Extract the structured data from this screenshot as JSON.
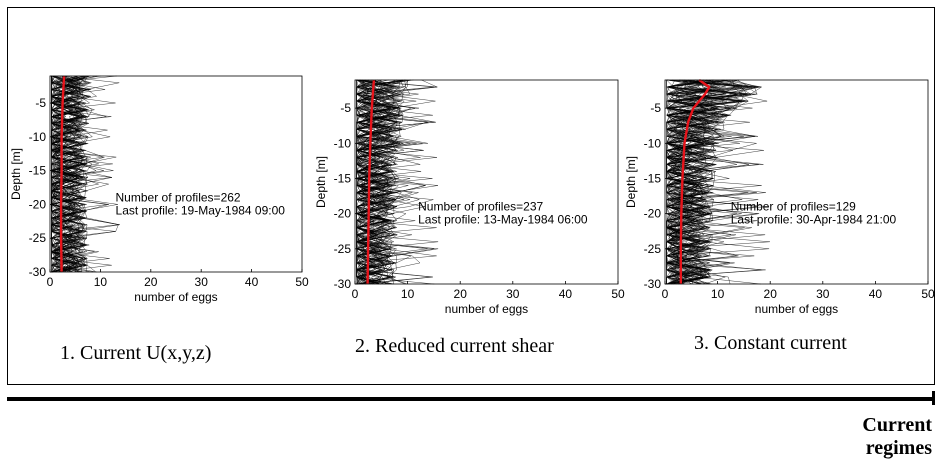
{
  "chart_data": [
    {
      "type": "line",
      "caption": "1.  Current U(x,y,z)",
      "xlabel": "number of eggs",
      "ylabel": "Depth [m]",
      "xlim": [
        0,
        50
      ],
      "ylim": [
        -30,
        -1
      ],
      "xticks": [
        0,
        10,
        20,
        30,
        40,
        50
      ],
      "yticks": [
        -5,
        -10,
        -15,
        -20,
        -25,
        -30
      ],
      "annotation": [
        "Number of profiles=262",
        "Last profile: 19-May-1984 09:00"
      ],
      "profiles_color": "#000000",
      "mean_color": "#e8141b",
      "profile_max": 6,
      "spike_max": 14,
      "mean_profile": {
        "depth": [
          -1,
          -5,
          -10,
          -15,
          -20,
          -25,
          -30
        ],
        "eggs": [
          2.8,
          2.5,
          2.3,
          2.3,
          2.2,
          2.2,
          2.3
        ]
      }
    },
    {
      "type": "line",
      "caption": "2. Reduced current shear",
      "xlabel": "number of eggs",
      "ylabel": "Depth [m]",
      "xlim": [
        0,
        50
      ],
      "ylim": [
        -30,
        -1
      ],
      "xticks": [
        0,
        10,
        20,
        30,
        40,
        50
      ],
      "yticks": [
        -5,
        -10,
        -15,
        -20,
        -25,
        -30
      ],
      "annotation": [
        "Number of profiles=237",
        "Last profile: 13-May-1984 06:00"
      ],
      "profiles_color": "#000000",
      "mean_color": "#e8141b",
      "profile_max": 8,
      "spike_max": 16,
      "mean_profile": {
        "depth": [
          -1,
          -5,
          -10,
          -15,
          -20,
          -25,
          -30
        ],
        "eggs": [
          3.6,
          3.2,
          2.9,
          2.7,
          2.6,
          2.5,
          2.4
        ]
      }
    },
    {
      "type": "line",
      "caption": "3. Constant current",
      "xlabel": "number of eggs",
      "ylabel": "Depth [m]",
      "xlim": [
        0,
        50
      ],
      "ylim": [
        -30,
        -1
      ],
      "xticks": [
        0,
        10,
        20,
        30,
        40,
        50
      ],
      "yticks": [
        -5,
        -10,
        -15,
        -20,
        -25,
        -30
      ],
      "annotation": [
        "Number of profiles=129",
        "Last profile: 30-Apr-1984 21:00"
      ],
      "profiles_color": "#000000",
      "mean_color": "#e8141b",
      "profile_max": 10,
      "spike_max": 20,
      "mean_profile": {
        "depth": [
          -1,
          -2,
          -3,
          -5,
          -7,
          -10,
          -15,
          -20,
          -25,
          -30
        ],
        "eggs": [
          6.5,
          8.4,
          7.6,
          5.4,
          4.4,
          3.7,
          3.3,
          3.1,
          3.0,
          3.0
        ]
      }
    }
  ],
  "footer": {
    "line1": "Current",
    "line2": "regimes"
  }
}
